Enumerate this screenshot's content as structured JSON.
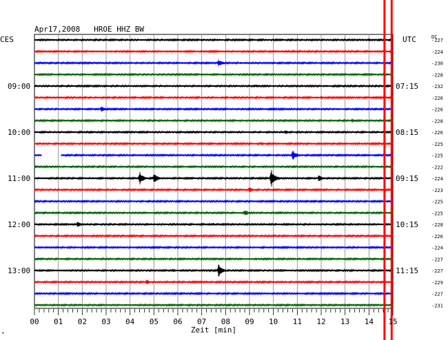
{
  "chart_data": {
    "type": "line",
    "title": "Apr17,2008   HROE HHZ BW",
    "left_label": "CES",
    "right_label": "UTC",
    "dc_label": "DC",
    "xlabel": "Zeit [min]",
    "xlim": [
      0,
      15
    ],
    "x_ticks": [
      "00",
      "01",
      "02",
      "03",
      "04",
      "05",
      "06",
      "07",
      "08",
      "09",
      "10",
      "11",
      "12",
      "13",
      "14",
      "15"
    ],
    "trace_colors": [
      "#000000",
      "#ff0000",
      "#0000ff",
      "#006400"
    ],
    "left_time_labels": [
      {
        "trace": 4,
        "text": "09:00"
      },
      {
        "trace": 8,
        "text": "10:00"
      },
      {
        "trace": 12,
        "text": "11:00"
      },
      {
        "trace": 16,
        "text": "12:00"
      },
      {
        "trace": 20,
        "text": "13:00"
      }
    ],
    "right_time_labels": [
      {
        "trace": 4,
        "text": "07:15"
      },
      {
        "trace": 8,
        "text": "08:15"
      },
      {
        "trace": 12,
        "text": "09:15"
      },
      {
        "trace": 16,
        "text": "10:15"
      },
      {
        "trace": 20,
        "text": "11:15"
      }
    ],
    "dc_values": [
      "-227",
      "-224",
      "-230",
      "-228",
      "-232",
      "-226",
      "-226",
      "-228",
      "-226",
      "-225",
      "-225",
      "-222",
      "-224",
      "-223",
      "-225",
      "-225",
      "-228",
      "-226",
      "-224",
      "-227",
      "-227",
      "-229",
      "-227",
      "-231"
    ],
    "events": [
      {
        "trace": 0,
        "minute": 14.0,
        "amp": 2
      },
      {
        "trace": 2,
        "minute": 7.7,
        "amp": 6
      },
      {
        "trace": 3,
        "minute": 7.0,
        "amp": 2
      },
      {
        "trace": 4,
        "minute": 9.3,
        "amp": 3
      },
      {
        "trace": 5,
        "minute": 12.0,
        "amp": 3
      },
      {
        "trace": 6,
        "minute": 2.8,
        "amp": 4
      },
      {
        "trace": 7,
        "minute": 13.3,
        "amp": 3
      },
      {
        "trace": 8,
        "minute": 10.5,
        "amp": 3
      },
      {
        "trace": 9,
        "minute": 9.5,
        "amp": 3
      },
      {
        "trace": 10,
        "minute": 10.8,
        "amp": 8
      },
      {
        "trace": 12,
        "minute": 4.4,
        "amp": 10
      },
      {
        "trace": 12,
        "minute": 5.0,
        "amp": 8
      },
      {
        "trace": 12,
        "minute": 9.9,
        "amp": 14
      },
      {
        "trace": 12,
        "minute": 11.9,
        "amp": 5
      },
      {
        "trace": 13,
        "minute": 9.0,
        "amp": 5
      },
      {
        "trace": 15,
        "minute": 8.8,
        "amp": 5
      },
      {
        "trace": 16,
        "minute": 1.8,
        "amp": 5
      },
      {
        "trace": 16,
        "minute": 7.5,
        "amp": 2
      },
      {
        "trace": 18,
        "minute": 4.8,
        "amp": 2
      },
      {
        "trace": 18,
        "minute": 10.2,
        "amp": 2
      },
      {
        "trace": 20,
        "minute": 5.8,
        "amp": 3
      },
      {
        "trace": 20,
        "minute": 7.7,
        "amp": 10
      },
      {
        "trace": 21,
        "minute": 4.7,
        "amp": 4
      },
      {
        "trace": 21,
        "minute": 7.2,
        "amp": 2
      }
    ],
    "gaps": [
      {
        "trace": 10,
        "from_minute": 0.3,
        "to_minute": 1.1
      }
    ],
    "spikes": [
      {
        "minute": 14.65,
        "color": "#ff0000"
      },
      {
        "minute": 14.95,
        "color": "#ff0000"
      }
    ],
    "grid": true,
    "corner_mark": "*"
  }
}
